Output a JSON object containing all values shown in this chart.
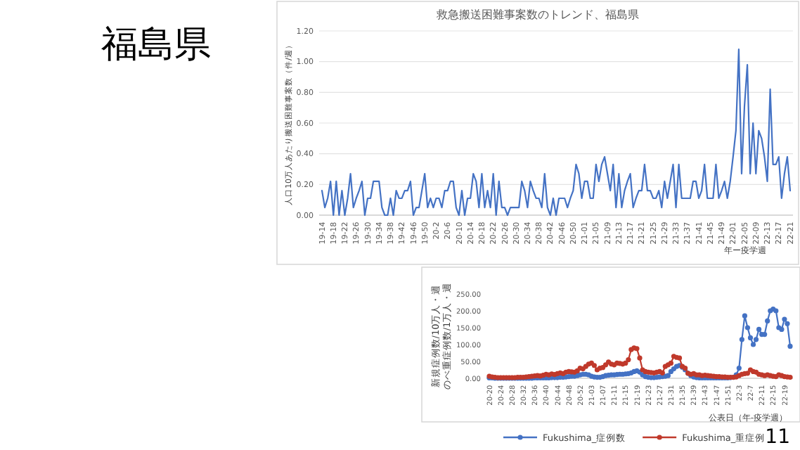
{
  "chart_data": [
    {
      "type": "line",
      "title": "救急搬送困難事案数のトレンド、福島県",
      "xlabel": "年ー疫学週",
      "ylabel": "人口10万人あたり搬送困難事案数（件/週）",
      "color": "#4472c4",
      "grid": "y",
      "ylim": [
        0,
        1.2
      ],
      "yticks": [
        {
          "value": 0,
          "label": "0.00"
        },
        {
          "value": 0.2,
          "label": "0.20"
        },
        {
          "value": 0.4,
          "label": "0.40"
        },
        {
          "value": 0.6,
          "label": "0.60"
        },
        {
          "value": 0.8,
          "label": "0.80"
        },
        {
          "value": 1.0,
          "label": "1.00"
        },
        {
          "value": 1.2,
          "label": "1.20"
        }
      ],
      "categories": [
        "19-14",
        null,
        null,
        null,
        "19-18",
        null,
        null,
        null,
        "19-22",
        null,
        null,
        null,
        "19-26",
        null,
        null,
        null,
        "19-30",
        null,
        null,
        null,
        "19-34",
        null,
        null,
        null,
        "19-38",
        null,
        null,
        null,
        "19-42",
        null,
        null,
        null,
        "19-46",
        null,
        null,
        null,
        "19-50",
        null,
        null,
        null,
        "20-2",
        null,
        null,
        null,
        "20-6",
        null,
        null,
        null,
        "20-10",
        null,
        null,
        null,
        "20-14",
        null,
        null,
        null,
        "20-18",
        null,
        null,
        null,
        "20-22",
        null,
        null,
        null,
        "20-26",
        null,
        null,
        null,
        "20-30",
        null,
        null,
        null,
        "20-34",
        null,
        null,
        null,
        "20-38",
        null,
        null,
        null,
        "20-42",
        null,
        null,
        null,
        "20-46",
        null,
        null,
        null,
        "20-50",
        null,
        null,
        null,
        "21-01",
        null,
        null,
        null,
        "21-05",
        null,
        null,
        null,
        "21-09",
        null,
        null,
        null,
        "21-13",
        null,
        null,
        null,
        "21-17",
        null,
        null,
        null,
        "21-21",
        null,
        null,
        null,
        "21-25",
        null,
        null,
        null,
        "21-29",
        null,
        null,
        null,
        "21-33",
        null,
        null,
        null,
        "21-37",
        null,
        null,
        null,
        "21-41",
        null,
        null,
        null,
        "21-45",
        null,
        null,
        null,
        "21-49",
        null,
        null,
        null,
        "22-01",
        null,
        null,
        null,
        "22-05",
        null,
        null,
        null,
        "22-09",
        null,
        null,
        null,
        "22-13",
        null,
        null,
        null,
        "22-17",
        null,
        null,
        null,
        "22-21"
      ],
      "values": [
        0.16,
        0.05,
        0.11,
        0.22,
        0,
        0.22,
        0,
        0.16,
        0,
        0.11,
        0.27,
        0.05,
        0.11,
        0.16,
        0.22,
        0,
        0.11,
        0.11,
        0.22,
        0.22,
        0.22,
        0.05,
        0,
        0,
        0.11,
        0,
        0.16,
        0.11,
        0.11,
        0.16,
        0.16,
        0.22,
        0,
        0.05,
        0.05,
        0.16,
        0.27,
        0.05,
        0.11,
        0.05,
        0.11,
        0.11,
        0.05,
        0.16,
        0.16,
        0.22,
        0.22,
        0.05,
        0,
        0.16,
        0,
        0.11,
        0.11,
        0.27,
        0.22,
        0.05,
        0.27,
        0.05,
        0.16,
        0.05,
        0.27,
        0,
        0.22,
        0.05,
        0.05,
        0,
        0.05,
        0.05,
        0.05,
        0.05,
        0.22,
        0.16,
        0.05,
        0.22,
        0.16,
        0.11,
        0.11,
        0.05,
        0.27,
        0.05,
        0,
        0.11,
        0,
        0.11,
        0.11,
        0.11,
        0.05,
        0.11,
        0.16,
        0.33,
        0.27,
        0.11,
        0.22,
        0.22,
        0.11,
        0.11,
        0.33,
        0.22,
        0.33,
        0.38,
        0.27,
        0.16,
        0.33,
        0.05,
        0.27,
        0.05,
        0.16,
        0.22,
        0.27,
        0.05,
        0.11,
        0.16,
        0.16,
        0.33,
        0.16,
        0.16,
        0.11,
        0.11,
        0.16,
        0.05,
        0.22,
        0.11,
        0.22,
        0.33,
        0.05,
        0.33,
        0.11,
        0.11,
        0.11,
        0.11,
        0.22,
        0.22,
        0.11,
        0.16,
        0.33,
        0.11,
        0.11,
        0.11,
        0.33,
        0.11,
        0.16,
        0.22,
        0.11,
        0.22,
        0.38,
        0.55,
        1.08,
        0.27,
        0.71,
        0.98,
        0.27,
        0.6,
        0.27,
        0.55,
        0.5,
        0.38,
        0.22,
        0.82,
        0.33,
        0.33,
        0.38,
        0.11,
        0.27,
        0.38,
        0.16
      ]
    },
    {
      "type": "line",
      "xlabel": "公表日（年-疫学週）",
      "ylabel": "新規症例数/10万人・週のべ重症例数/1万人・週",
      "legend": "bottom",
      "marker": "circle",
      "ylim": [
        0,
        250
      ],
      "yticks": [
        {
          "value": 0,
          "label": "0.00"
        },
        {
          "value": 50,
          "label": "50.00"
        },
        {
          "value": 100,
          "label": "100.00"
        },
        {
          "value": 150,
          "label": "150.00"
        },
        {
          "value": 200,
          "label": "200.00"
        },
        {
          "value": 250,
          "label": "250.00"
        }
      ],
      "categories": [
        "20-20",
        null,
        null,
        null,
        "20-24",
        null,
        null,
        null,
        "20-28",
        null,
        null,
        null,
        "20-32",
        null,
        null,
        null,
        "20-36",
        null,
        null,
        null,
        "20-40",
        null,
        null,
        null,
        "20-44",
        null,
        null,
        null,
        "20-48",
        null,
        null,
        null,
        "20-52",
        null,
        null,
        null,
        "21-03",
        null,
        null,
        null,
        "21-07",
        null,
        null,
        null,
        "21-11",
        null,
        null,
        null,
        "21-15",
        null,
        null,
        null,
        "21-19",
        null,
        null,
        null,
        "21-23",
        null,
        null,
        null,
        "21-27",
        null,
        null,
        null,
        "21-31",
        null,
        null,
        null,
        "21-35",
        null,
        null,
        null,
        "21-39",
        null,
        null,
        null,
        "21-43",
        null,
        null,
        null,
        "21-47",
        null,
        null,
        null,
        "21-51",
        null,
        null,
        null,
        "22-3",
        null,
        null,
        null,
        "22-7",
        null,
        null,
        null,
        "22-11",
        null,
        null,
        null,
        "22-15",
        null,
        null,
        null,
        "22-19",
        null,
        null
      ],
      "series": [
        {
          "name": "Fukushima_症例数",
          "color": "#4472c4",
          "values": [
            1,
            1,
            0,
            0,
            0,
            0,
            0,
            0,
            0,
            0,
            0,
            0,
            0,
            0,
            0,
            0,
            1,
            1,
            1,
            1,
            1,
            1,
            2,
            2,
            2,
            3,
            3,
            4,
            5,
            6,
            6,
            8,
            10,
            12,
            12,
            10,
            6,
            4,
            3,
            3,
            5,
            8,
            9,
            10,
            10,
            11,
            12,
            12,
            13,
            14,
            16,
            20,
            22,
            18,
            10,
            5,
            3,
            2,
            2,
            3,
            4,
            5,
            6,
            8,
            20,
            28,
            35,
            38,
            33,
            25,
            15,
            8,
            4,
            2,
            1,
            1,
            1,
            1,
            1,
            1,
            1,
            1,
            1,
            1,
            1,
            2,
            3,
            10,
            30,
            115,
            185,
            150,
            120,
            100,
            115,
            145,
            130,
            130,
            170,
            200,
            205,
            200,
            150,
            145,
            175,
            162,
            95
          ]
        },
        {
          "name": "Fukushima_重症例",
          "color": "#c0392b",
          "values": [
            6,
            4,
            3,
            2,
            2,
            2,
            2,
            2,
            2,
            2,
            3,
            3,
            3,
            4,
            5,
            6,
            7,
            8,
            7,
            9,
            12,
            10,
            13,
            11,
            14,
            16,
            14,
            18,
            20,
            19,
            18,
            22,
            30,
            28,
            35,
            42,
            45,
            38,
            25,
            30,
            32,
            40,
            48,
            42,
            40,
            45,
            44,
            42,
            45,
            55,
            85,
            90,
            88,
            60,
            25,
            20,
            18,
            17,
            16,
            18,
            20,
            16,
            35,
            40,
            45,
            65,
            62,
            60,
            35,
            30,
            15,
            12,
            14,
            10,
            10,
            8,
            9,
            8,
            7,
            6,
            5,
            5,
            4,
            4,
            3,
            3,
            3,
            4,
            8,
            12,
            14,
            15,
            25,
            20,
            18,
            12,
            10,
            8,
            10,
            8,
            6,
            5,
            10,
            8,
            5,
            4,
            3
          ]
        }
      ]
    },
    {
      "type": "other",
      "title": "福島県",
      "annotations": [
        "11"
      ]
    }
  ]
}
